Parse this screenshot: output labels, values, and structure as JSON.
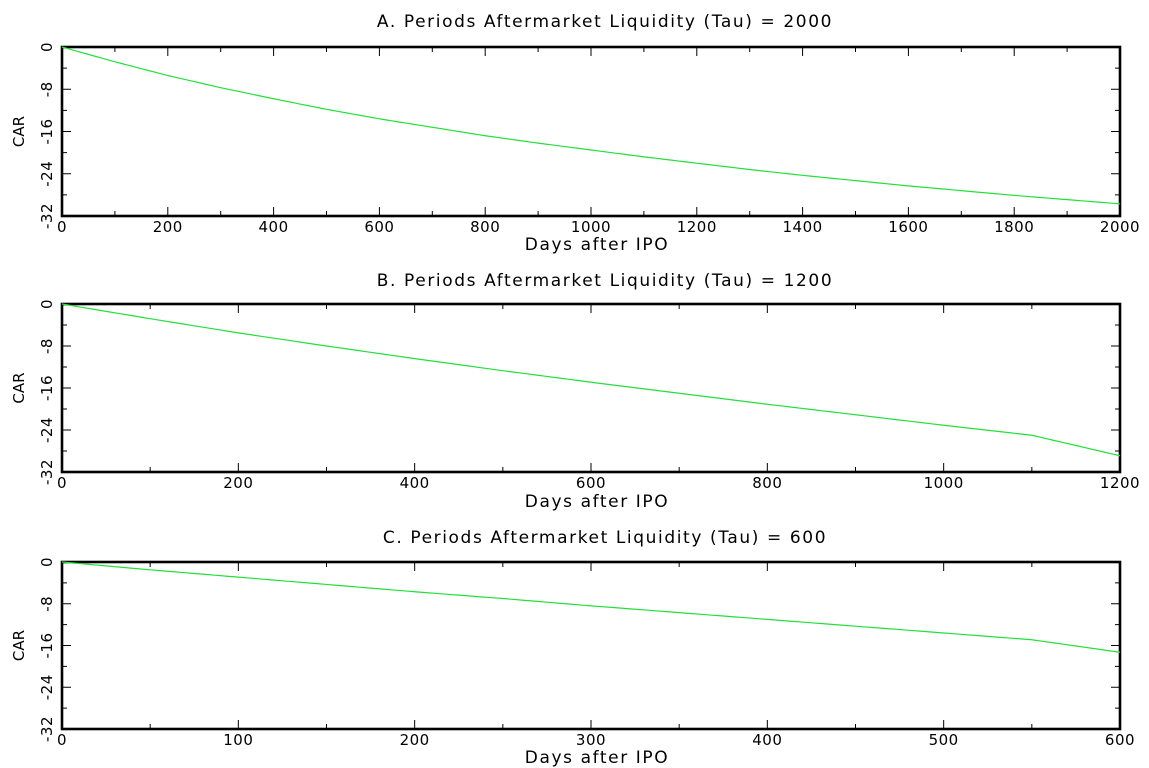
{
  "chart_data": [
    {
      "type": "line",
      "title": "A. Periods Aftermarket Liquidity (Tau) = 2000",
      "xlabel": "Days after IPO",
      "ylabel": "CAR",
      "xlim": [
        0,
        2000
      ],
      "ylim": [
        -32,
        0
      ],
      "xticks": [
        0,
        200,
        400,
        600,
        800,
        1000,
        1200,
        1400,
        1600,
        1800,
        2000
      ],
      "yticks": [
        0,
        -8,
        -16,
        -24,
        -32
      ],
      "grid": false,
      "color": "#22e03a",
      "series": [
        {
          "x": [
            0,
            100,
            200,
            300,
            400,
            500,
            600,
            700,
            800,
            900,
            1000,
            1100,
            1200,
            1300,
            1400,
            1500,
            1600,
            1700,
            1800,
            1900,
            2000
          ],
          "y": [
            0,
            -2.8,
            -5.4,
            -7.7,
            -9.8,
            -11.8,
            -13.6,
            -15.2,
            -16.8,
            -18.2,
            -19.5,
            -20.8,
            -22.0,
            -23.2,
            -24.3,
            -25.3,
            -26.3,
            -27.2,
            -28.1,
            -28.9,
            -29.7
          ]
        }
      ]
    },
    {
      "type": "line",
      "title": "B. Periods Aftermarket Liquidity (Tau) = 1200",
      "xlabel": "Days after IPO",
      "ylabel": "CAR",
      "xlim": [
        0,
        1200
      ],
      "ylim": [
        -32,
        0
      ],
      "xticks": [
        0,
        200,
        400,
        600,
        800,
        1000,
        1200
      ],
      "yticks": [
        0,
        -8,
        -16,
        -24,
        -32
      ],
      "grid": false,
      "color": "#22e03a",
      "series": [
        {
          "x": [
            0,
            100,
            200,
            300,
            400,
            500,
            600,
            700,
            800,
            900,
            1000,
            1100,
            1200
          ],
          "y": [
            0,
            -2.8,
            -5.5,
            -8.0,
            -10.4,
            -12.7,
            -14.9,
            -17.0,
            -19.1,
            -21.1,
            -23.1,
            -25.0,
            -28.9
          ]
        }
      ]
    },
    {
      "type": "line",
      "title": "C. Periods Aftermarket Liquidity (Tau) = 600",
      "xlabel": "Days after IPO",
      "ylabel": "CAR",
      "xlim": [
        0,
        600
      ],
      "ylim": [
        -32,
        0
      ],
      "xticks": [
        0,
        100,
        200,
        300,
        400,
        500,
        600
      ],
      "yticks": [
        0,
        -8,
        -16,
        -24,
        -32
      ],
      "grid": false,
      "color": "#22e03a",
      "series": [
        {
          "x": [
            0,
            50,
            100,
            150,
            200,
            250,
            300,
            350,
            400,
            450,
            500,
            550,
            600
          ],
          "y": [
            0,
            -1.5,
            -2.9,
            -4.3,
            -5.7,
            -7.0,
            -8.4,
            -9.7,
            -11.0,
            -12.3,
            -13.6,
            -14.9,
            -17.3
          ]
        }
      ]
    }
  ]
}
